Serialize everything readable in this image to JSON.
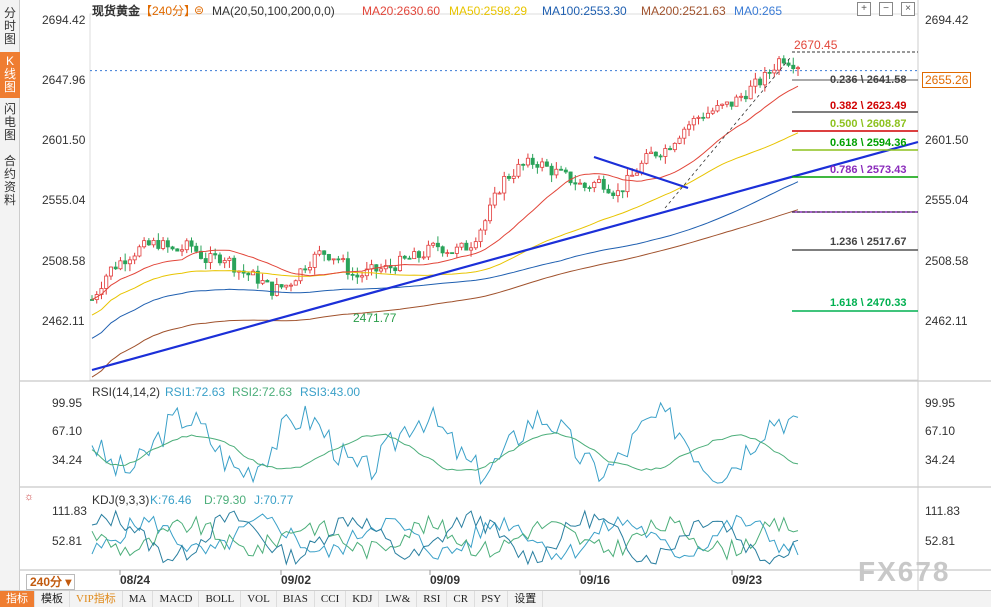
{
  "sidebar": {
    "tabs": [
      {
        "label": "分时图",
        "active": false
      },
      {
        "label": "K线图",
        "active": true
      },
      {
        "label": "闪电图",
        "active": false
      },
      {
        "label": "合约资料",
        "active": false
      }
    ]
  },
  "header": {
    "symbol": "现货黄金",
    "period": "【240分】",
    "ma_label": "MA(20,50,100,200,0,0)",
    "ma20": "MA20:2630.60",
    "ma50": "MA50:2598.29",
    "ma100": "MA100:2553.30",
    "ma200": "MA200:2521.63",
    "ma0": "MA0:265",
    "colors": {
      "ma20": "#e2463a",
      "ma50": "#e8c400",
      "ma100": "#1f5fb0",
      "ma200": "#a0522d",
      "ma0": "#3a7bd5"
    }
  },
  "price_axis": {
    "labels": [
      "2694.42",
      "2647.96",
      "2601.50",
      "2555.04",
      "2508.58",
      "2462.11"
    ],
    "current_price": "2655.26"
  },
  "annotations": {
    "high": "2670.45",
    "low": "2471.77"
  },
  "fibonacci": [
    {
      "label": "0.236 \\ 2641.58",
      "color": "#444444"
    },
    {
      "label": "0.382 \\ 2623.49",
      "color": "#d00000"
    },
    {
      "label": "0.500 \\ 2608.87",
      "color": "#8dc21f"
    },
    {
      "label": "0.618 \\ 2594.36",
      "color": "#00a000"
    },
    {
      "label": "0.786 \\ 2573.43",
      "color": "#8a2bbb"
    },
    {
      "label": "1.236 \\ 2517.67",
      "color": "#444444"
    },
    {
      "label": "1.618 \\ 2470.33",
      "color": "#00b050"
    }
  ],
  "rsi": {
    "title": "RSI(14,14,2)",
    "rsi1": "RSI1:72.63",
    "rsi2": "RSI2:72.63",
    "rsi3": "RSI3:43.00",
    "axis": [
      "99.95",
      "67.10",
      "34.24"
    ]
  },
  "kdj": {
    "title": "KDJ(9,3,3)",
    "k": "K:76.46",
    "d": "D:79.30",
    "j": "J:70.77",
    "axis": [
      "111.83",
      "52.81"
    ]
  },
  "dates": [
    "08/24",
    "09/02",
    "09/09",
    "09/16",
    "09/23"
  ],
  "period_selector": "240分",
  "bottom_tabs": [
    "指标",
    "模板",
    "VIP指标",
    "MA",
    "MACD",
    "BOLL",
    "VOL",
    "BIAS",
    "CCI",
    "KDJ",
    "LW&",
    "RSI",
    "CR",
    "PSY",
    "设置"
  ],
  "watermark": "FX678",
  "chart_data": {
    "type": "candlestick",
    "timeframe": "240分",
    "y_ticks": [
      2694.42,
      2647.96,
      2601.5,
      2555.04,
      2508.58,
      2462.11
    ],
    "x_ticks": [
      "08/24",
      "09/02",
      "09/09",
      "09/16",
      "09/23"
    ],
    "approx_close_path": [
      2478,
      2500,
      2510,
      2518,
      2522,
      2515,
      2520,
      2508,
      2512,
      2500,
      2495,
      2485,
      2490,
      2505,
      2515,
      2510,
      2495,
      2500,
      2502,
      2508,
      2512,
      2520,
      2515,
      2520,
      2540,
      2570,
      2580,
      2585,
      2578,
      2572,
      2565,
      2570,
      2560,
      2575,
      2590,
      2595,
      2610,
      2620,
      2625,
      2630,
      2640,
      2650,
      2666,
      2660
    ],
    "last_price": 2655.26,
    "high": 2670.45,
    "low": 2471.77
  }
}
